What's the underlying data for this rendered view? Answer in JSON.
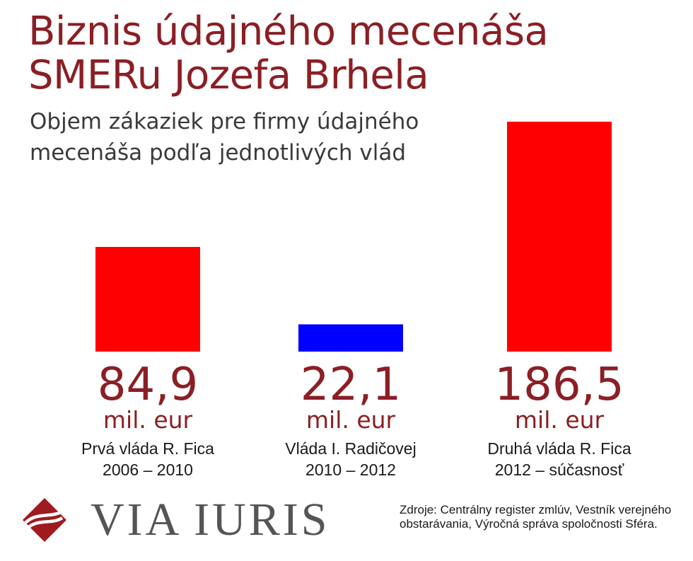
{
  "title_line1": "Biznis údajného mecenáša",
  "title_line2": "SMERu Jozefa Brhela",
  "subtitle_line1": "Objem zákaziek pre firmy údajného",
  "subtitle_line2": "mecenáša podľa jednotlivých vlád",
  "colors": {
    "title": "#8b1f24",
    "bar_red": "#ff0000",
    "bar_blue": "#0000ff"
  },
  "chart_data": {
    "type": "bar",
    "categories": [
      [
        "Prvá vláda R. Fica",
        "2006 – 2010"
      ],
      [
        "Vláda I. Radičovej",
        "2010 – 2012"
      ],
      [
        "Druhá vláda R. Fica",
        "2012 – súčasnosť"
      ]
    ],
    "values": [
      84.9,
      22.1,
      186.5
    ],
    "value_labels": [
      "84,9",
      "22,1",
      "186,5"
    ],
    "unit": "mil. eur",
    "bar_colors": [
      "#ff0000",
      "#0000ff",
      "#ff0000"
    ],
    "ylim": [
      0,
      186.5
    ],
    "grid": false,
    "legend": "none"
  },
  "logo": {
    "text": "VIA IURIS",
    "icon": "via-iuris-logo-icon"
  },
  "sources": "Zdroje: Centrálny register zmlúv, Vestník verejného obstarávania, Výročná správa spoločnosti Sféra."
}
